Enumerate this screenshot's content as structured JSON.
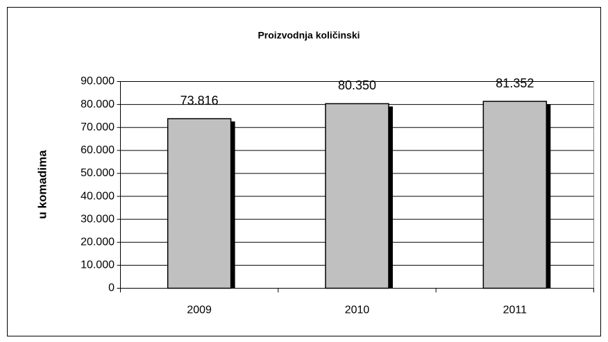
{
  "chart_data": {
    "type": "bar",
    "title": "Proizvodnja količinski",
    "y_label": "u komadima",
    "categories": [
      "2009",
      "2010",
      "2011"
    ],
    "values": [
      73816,
      80350,
      81352
    ],
    "value_labels": [
      "73.816",
      "80.350",
      "81.352"
    ],
    "color": "#c0c0c0",
    "ylim": [
      0,
      90000
    ],
    "yticks": [
      0,
      {
        "value": 10000,
        "label": "10.000"
      },
      {
        "value": 20000,
        "label": "20.000"
      },
      {
        "value": 30000,
        "label": "30.000"
      },
      {
        "value": 40000,
        "label": "40.000"
      },
      {
        "value": 50000,
        "label": "50.000"
      },
      {
        "value": 60000,
        "label": "60.000"
      },
      {
        "value": 70000,
        "label": "70.000"
      },
      {
        "value": 80000,
        "label": "80.000"
      },
      {
        "value": 90000,
        "label": "90.000"
      }
    ],
    "grid": true
  }
}
